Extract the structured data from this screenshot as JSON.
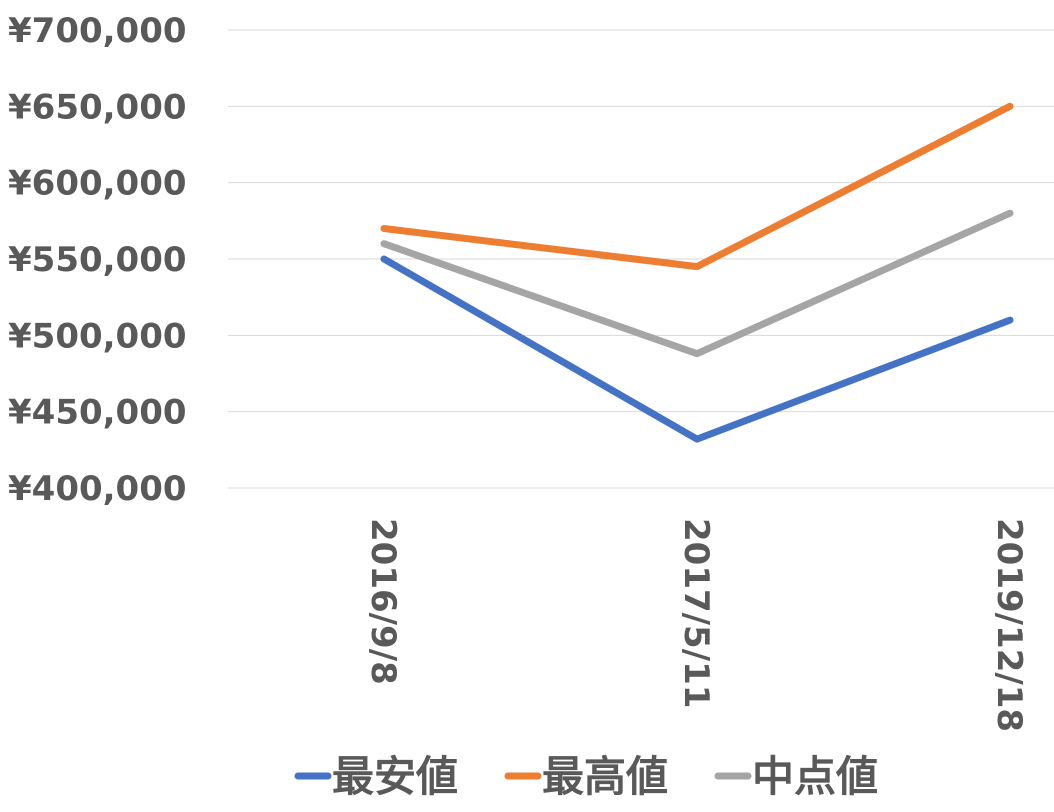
{
  "chart_data": {
    "type": "line",
    "title": "",
    "xlabel": "",
    "ylabel": "",
    "categories": [
      "2016/9/8",
      "2017/5/11",
      "2019/12/18"
    ],
    "ylim": [
      400000,
      700000
    ],
    "y_ticks": [
      400000,
      450000,
      500000,
      550000,
      600000,
      650000,
      700000
    ],
    "y_tick_labels": [
      "¥400,000",
      "¥450,000",
      "¥500,000",
      "¥550,000",
      "¥600,000",
      "¥650,000",
      "¥700,000"
    ],
    "grid": true,
    "legend_position": "bottom",
    "series": [
      {
        "name": "最安値",
        "color": "#4472c4",
        "values": [
          550000,
          432000,
          510000
        ]
      },
      {
        "name": "最高値",
        "color": "#ed7d31",
        "values": [
          570000,
          545000,
          650000
        ]
      },
      {
        "name": "中点値",
        "color": "#a5a5a5",
        "values": [
          560000,
          488000,
          580000
        ]
      }
    ]
  }
}
